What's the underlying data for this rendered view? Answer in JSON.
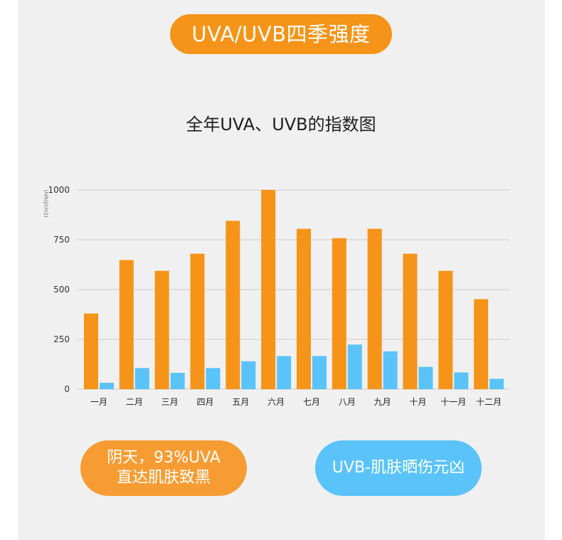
{
  "header": {
    "title": "UVA/UVB四季强度"
  },
  "chart_data": {
    "type": "bar",
    "title": "全年UVA、UVB的指数图",
    "ylabel": "UVA(J/cm2)",
    "xlabel": "",
    "ylim": [
      0,
      1000
    ],
    "yticks": [
      0,
      250,
      500,
      750,
      1000
    ],
    "grid": true,
    "categories": [
      "一月",
      "二月",
      "三月",
      "四月",
      "五月",
      "六月",
      "七月",
      "八月",
      "九月",
      "十月",
      "十一月",
      "十二月"
    ],
    "series": [
      {
        "values": [
          380,
          648,
          594,
          680,
          845,
          1000,
          805,
          758,
          805,
          680,
          594,
          452
        ],
        "color": "#f59418"
      },
      {
        "values": [
          32,
          106,
          82,
          106,
          140,
          166,
          166,
          224,
          190,
          112,
          84,
          52
        ],
        "color": "#5ac3fa"
      }
    ]
  },
  "badges": {
    "uva_line1": "阴天，93%UVA",
    "uva_line2": "直达肌肤致黑",
    "uvb": "UVB-肌肤晒伤元凶"
  },
  "colors": {
    "orange": "#f59418",
    "blue": "#5ac3fa",
    "grid": "#cccccc"
  }
}
